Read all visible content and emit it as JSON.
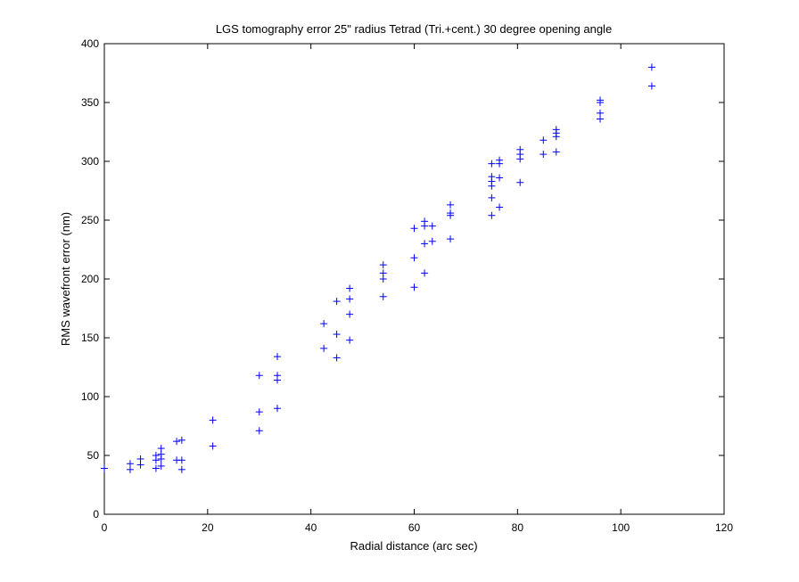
{
  "chart_data": {
    "type": "scatter",
    "title": "LGS tomography error 25\" radius Tetrad (Tri.+cent.) 30 degree opening angle",
    "xlabel": "Radial distance (arc sec)",
    "ylabel": "RMS wavefront error (nm)",
    "xlim": [
      0,
      120
    ],
    "ylim": [
      0,
      400
    ],
    "xticks": [
      "0",
      "20",
      "40",
      "60",
      "80",
      "100",
      "120"
    ],
    "yticks": [
      "0",
      "50",
      "100",
      "150",
      "200",
      "250",
      "300",
      "350",
      "400"
    ],
    "grid": false,
    "legend": null,
    "marker": "+",
    "color": "#0000ff",
    "series": [
      {
        "points": [
          [
            0,
            39
          ],
          [
            5,
            43
          ],
          [
            5,
            38
          ],
          [
            7,
            47
          ],
          [
            7,
            42
          ],
          [
            10,
            50
          ],
          [
            10,
            46
          ],
          [
            10,
            39
          ],
          [
            11,
            56
          ],
          [
            11,
            51
          ],
          [
            11,
            47
          ],
          [
            11,
            41
          ],
          [
            14,
            62
          ],
          [
            14,
            46
          ],
          [
            15,
            63
          ],
          [
            15,
            46
          ],
          [
            15,
            38
          ],
          [
            21,
            80
          ],
          [
            21,
            58
          ],
          [
            30,
            118
          ],
          [
            30,
            87
          ],
          [
            30,
            71
          ],
          [
            33.5,
            134
          ],
          [
            33.5,
            118
          ],
          [
            33.5,
            114
          ],
          [
            33.5,
            90
          ],
          [
            42.5,
            162
          ],
          [
            42.5,
            141
          ],
          [
            45,
            181
          ],
          [
            45,
            153
          ],
          [
            45,
            133
          ],
          [
            47.5,
            192
          ],
          [
            47.5,
            183
          ],
          [
            47.5,
            170
          ],
          [
            47.5,
            148
          ],
          [
            54,
            212
          ],
          [
            54,
            205
          ],
          [
            54,
            200
          ],
          [
            54,
            185
          ],
          [
            60,
            243
          ],
          [
            60,
            218
          ],
          [
            60,
            193
          ],
          [
            62,
            249
          ],
          [
            62,
            245
          ],
          [
            62,
            230
          ],
          [
            62,
            205
          ],
          [
            63.5,
            245
          ],
          [
            63.5,
            232
          ],
          [
            67,
            263
          ],
          [
            67,
            256
          ],
          [
            67,
            254
          ],
          [
            67,
            234
          ],
          [
            75,
            298
          ],
          [
            75,
            287
          ],
          [
            75,
            283
          ],
          [
            75,
            279
          ],
          [
            75,
            269
          ],
          [
            75,
            254
          ],
          [
            76.5,
            301
          ],
          [
            76.5,
            298
          ],
          [
            76.5,
            286
          ],
          [
            76.5,
            261
          ],
          [
            80.5,
            310
          ],
          [
            80.5,
            306
          ],
          [
            80.5,
            302
          ],
          [
            80.5,
            282
          ],
          [
            85,
            318
          ],
          [
            85,
            306
          ],
          [
            87.5,
            327
          ],
          [
            87.5,
            324
          ],
          [
            87.5,
            321
          ],
          [
            87.5,
            308
          ],
          [
            96,
            352
          ],
          [
            96,
            350
          ],
          [
            96,
            341
          ],
          [
            96,
            336
          ],
          [
            106,
            380
          ],
          [
            106,
            364
          ]
        ]
      }
    ]
  }
}
